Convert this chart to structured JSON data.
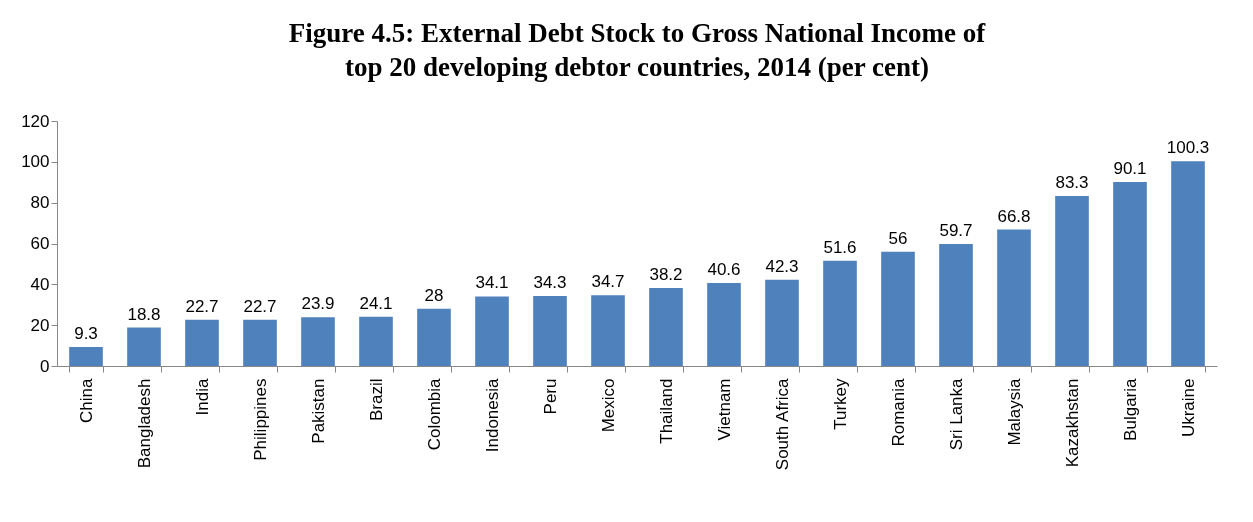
{
  "chart_data": {
    "type": "bar",
    "title": "Figure 4.5: External Debt Stock to Gross National Income of\ntop 20 developing debtor countries, 2014 (per cent)",
    "categories": [
      "China",
      "Bangladesh",
      "India",
      "Philippines",
      "Pakistan",
      "Brazil",
      "Colombia",
      "Indonesia",
      "Peru",
      "Mexico",
      "Thailand",
      "Vietnam",
      "South Africa",
      "Turkey",
      "Romania",
      "Sri Lanka",
      "Malaysia",
      "Kazakhstan",
      "Bulgaria",
      "Ukraine"
    ],
    "values": [
      9.3,
      18.8,
      22.7,
      22.7,
      23.9,
      24.1,
      28,
      34.1,
      34.3,
      34.7,
      38.2,
      40.6,
      42.3,
      51.6,
      56,
      59.7,
      66.8,
      83.3,
      90.1,
      100.3
    ],
    "color": "#4f81bd",
    "ylim": [
      0,
      120
    ],
    "yticks": [
      0,
      20,
      40,
      60,
      80,
      100,
      120
    ],
    "grid": false,
    "data_labels": true
  }
}
